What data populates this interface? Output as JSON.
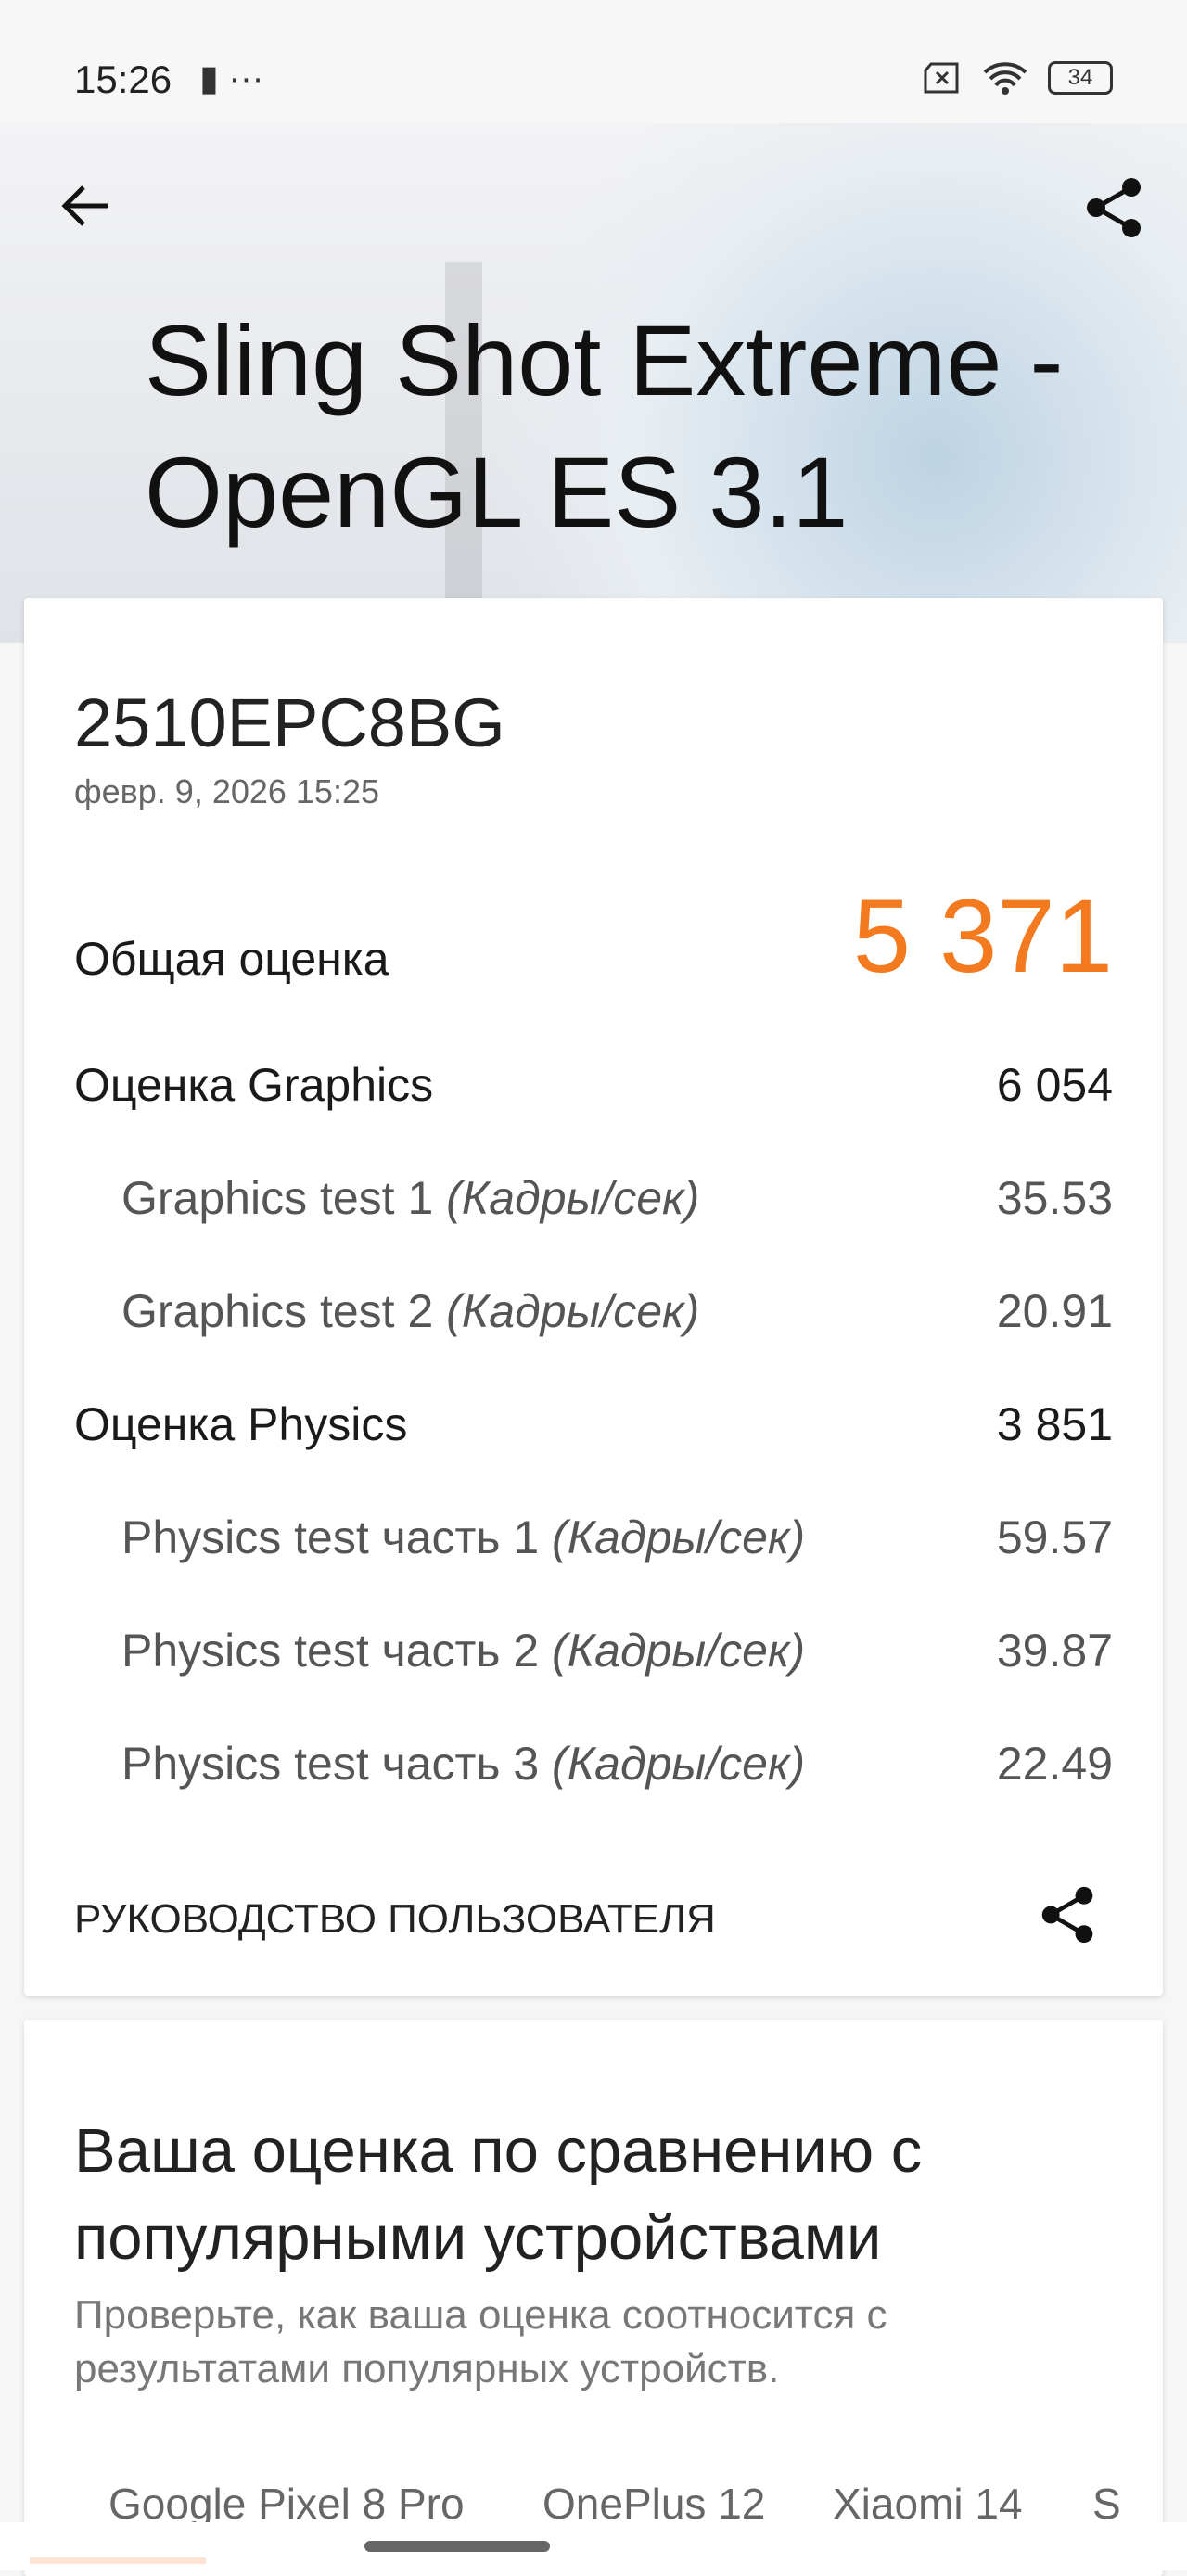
{
  "status_bar": {
    "time": "15:26",
    "left_icons": [
      "notification-icon",
      "more-dots-icon"
    ],
    "more": "···",
    "battery": "34",
    "right_icons": [
      "no-sim-icon",
      "wifi-icon",
      "battery-icon"
    ]
  },
  "header": {
    "title": "Sling Shot Extreme - OpenGL ES 3.1",
    "back_icon": "arrow-left-icon",
    "share_icon": "share-icon"
  },
  "result": {
    "device": "2510EPC8BG",
    "date": "февр. 9, 2026 15:25",
    "total_label": "Общая оценка",
    "total_value": "5 371",
    "accent": "#f47a20",
    "rows": [
      {
        "label": "Оценка Graphics",
        "unit": "",
        "value": "6 054",
        "sub": false
      },
      {
        "label": "Graphics test 1 ",
        "unit": "(Кадры/сек)",
        "value": "35.53",
        "sub": true
      },
      {
        "label": "Graphics test 2 ",
        "unit": "(Кадры/сек)",
        "value": "20.91",
        "sub": true
      },
      {
        "label": "Оценка Physics",
        "unit": "",
        "value": "3 851",
        "sub": false
      },
      {
        "label": "Physics test часть 1 ",
        "unit": "(Кадры/сек)",
        "value": "59.57",
        "sub": true
      },
      {
        "label": "Physics test часть 2 ",
        "unit": "(Кадры/сек)",
        "value": "39.87",
        "sub": true
      },
      {
        "label": "Physics test часть 3 ",
        "unit": "(Кадры/сек)",
        "value": "22.49",
        "sub": true
      }
    ],
    "guide_label": "РУКОВОДСТВО ПОЛЬЗОВАТЕЛЯ"
  },
  "comparison": {
    "title": "Ваша оценка по сравнению с популярными устройствами",
    "description": "Проверьте, как ваша оценка соотносится с результатами популярных устройств.",
    "tabs": [
      "Google Pixel 8 Pro",
      "OnePlus 12",
      "Xiaomi 14",
      "S"
    ]
  }
}
